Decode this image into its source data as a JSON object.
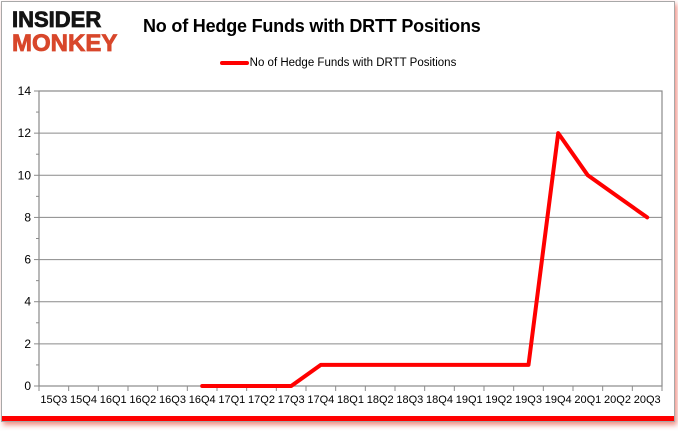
{
  "logo": {
    "line1": "INSIDER",
    "line2": "MONKEY"
  },
  "header": {
    "title": "No of Hedge Funds with DRTT Positions"
  },
  "legend": {
    "label": "No of Hedge Funds with DRTT Positions"
  },
  "colors": {
    "line": "#ff0000",
    "grid": "#8a8a8a",
    "axis": "#8a8a8a",
    "text": "#000000",
    "logo_red": "#d8472b",
    "logo_black": "#141414",
    "frame_border": "#a8a8a8",
    "bottom_bar": "#ff0000"
  },
  "chart_data": {
    "type": "line",
    "title": "No of Hedge Funds with DRTT Positions",
    "series": [
      {
        "name": "No of Hedge Funds with DRTT Positions",
        "color": "#ff0000",
        "values": [
          null,
          null,
          null,
          null,
          null,
          0,
          0,
          0,
          0,
          1,
          1,
          1,
          1,
          1,
          1,
          1,
          1,
          12,
          10,
          9,
          8
        ]
      }
    ],
    "categories": [
      "15Q3",
      "15Q4",
      "16Q1",
      "16Q2",
      "16Q3",
      "16Q4",
      "17Q1",
      "17Q2",
      "17Q3",
      "17Q4",
      "18Q1",
      "18Q2",
      "18Q3",
      "18Q4",
      "19Q1",
      "19Q2",
      "19Q3",
      "19Q4",
      "20Q1",
      "20Q2",
      "20Q3"
    ],
    "xlabel": "",
    "ylabel": "",
    "ylim": [
      0,
      14
    ],
    "ytick_step": 2,
    "yminor_step": 1,
    "grid": true,
    "legend_position": "top"
  }
}
